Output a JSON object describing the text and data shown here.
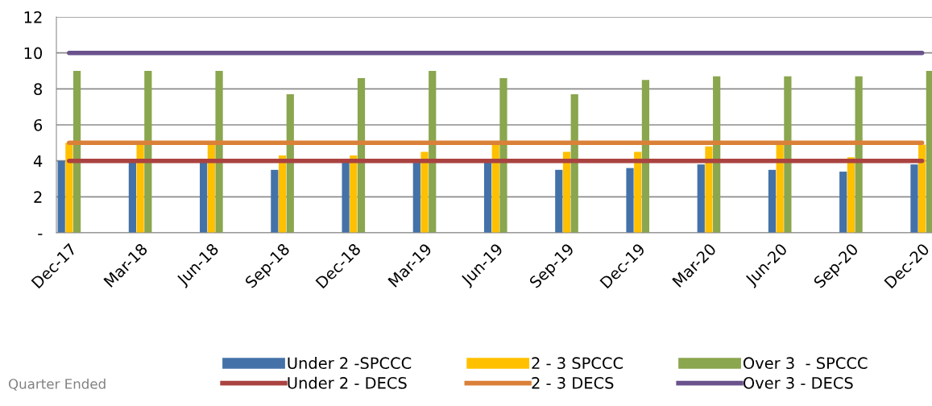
{
  "chart_data": {
    "type": "bar",
    "categories": [
      "Dec-17",
      "Mar-18",
      "Jun-18",
      "Sep-18",
      "Dec-18",
      "Mar-19",
      "Jun-19",
      "Sep-19",
      "Dec-19",
      "Mar-20",
      "Jun-20",
      "Sep-20",
      "Dec-20"
    ],
    "series": [
      {
        "name": "Under 2 -SPCCC",
        "color": "#4472a8",
        "values": [
          4.0,
          4.0,
          4.0,
          3.5,
          4.0,
          4.0,
          3.9,
          3.5,
          3.6,
          3.8,
          3.5,
          3.4,
          3.8
        ]
      },
      {
        "name": "2 - 3 SPCCC",
        "color": "#ffc000",
        "values": [
          5.0,
          5.0,
          5.0,
          4.3,
          4.3,
          4.5,
          4.9,
          4.5,
          4.5,
          4.8,
          4.9,
          4.2,
          4.9
        ]
      },
      {
        "name": "Over 3  - SPCCC",
        "color": "#8aa64e",
        "values": [
          9.0,
          9.0,
          9.0,
          7.7,
          8.6,
          9.0,
          8.6,
          7.7,
          8.5,
          8.7,
          8.7,
          8.7,
          9.0
        ]
      },
      {
        "name": "Under 2 - DECS",
        "type": "line",
        "color": "#aa4340",
        "values": [
          4,
          4,
          4,
          4,
          4,
          4,
          4,
          4,
          4,
          4,
          4,
          4,
          4
        ]
      },
      {
        "name": "2 - 3 DECS",
        "type": "line",
        "color": "#db8038",
        "values": [
          5,
          5,
          5,
          5,
          5,
          5,
          5,
          5,
          5,
          5,
          5,
          5,
          5
        ]
      },
      {
        "name": "Over 3 - DECS",
        "type": "line",
        "color": "#6a528c",
        "values": [
          10,
          10,
          10,
          10,
          10,
          10,
          10,
          10,
          10,
          10,
          10,
          10,
          10
        ]
      }
    ],
    "annotations": [
      "Quarter Ended"
    ],
    "ylim": [
      0,
      12
    ],
    "yticks": [
      {
        "value": 0,
        "label": "-"
      },
      2,
      4,
      6,
      8,
      10,
      12
    ],
    "grid": "y",
    "legend": "bottom"
  }
}
